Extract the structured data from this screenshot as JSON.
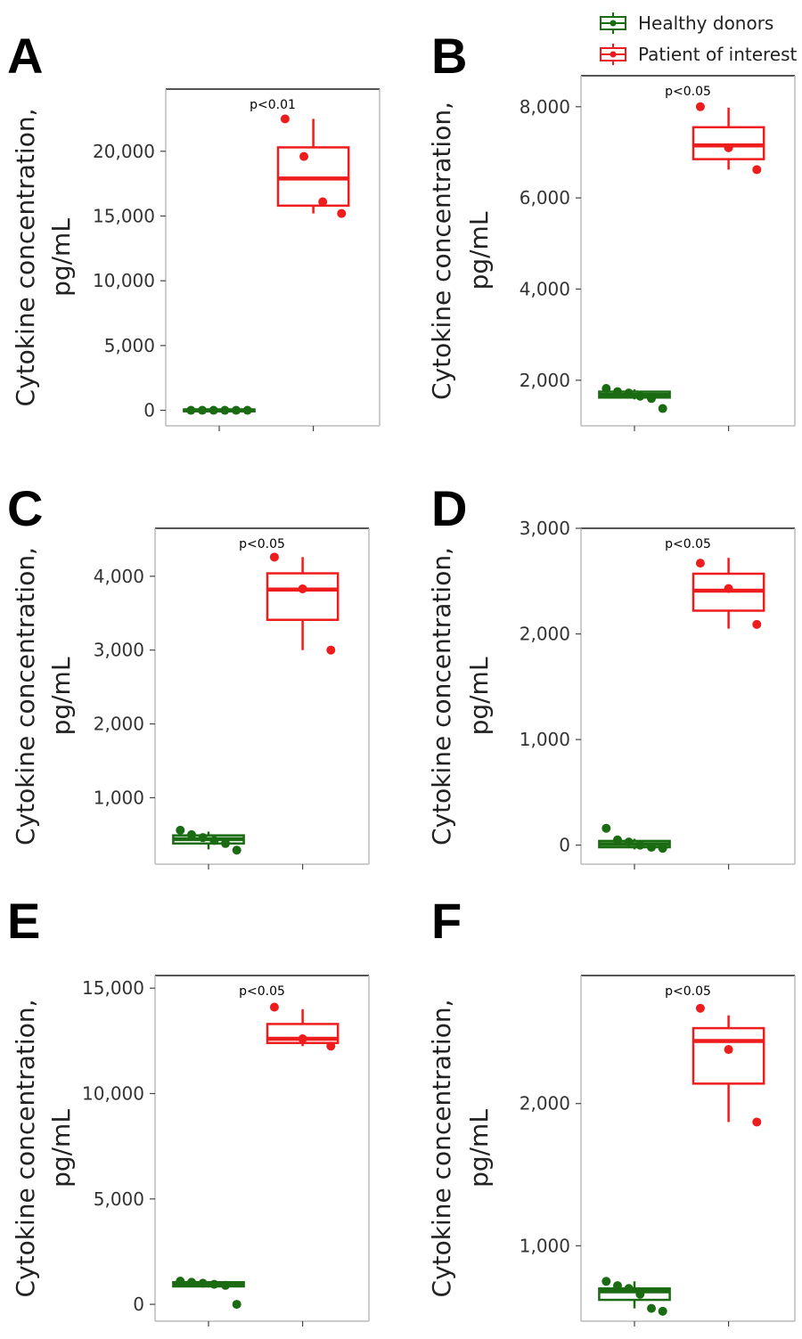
{
  "legend": {
    "position": "top-right",
    "items": [
      {
        "label": "Healthy donors",
        "color": "#1a6b12"
      },
      {
        "label": "Patient of interest",
        "color": "#ee1c1c"
      }
    ]
  },
  "chart_data": [
    {
      "panel": "A",
      "type": "box",
      "ylabel_line1": "Cytokine concentration,",
      "ylabel_line2": "pg/mL",
      "annotation": "p<0.01",
      "ylim": [
        -1200,
        24800
      ],
      "yticks": [
        0,
        5000,
        10000,
        15000,
        20000
      ],
      "ytick_labels": [
        "0",
        "5,000",
        "10,000",
        "15,000",
        "20,000"
      ],
      "groups": [
        {
          "name": "Healthy donors",
          "color": "#1a6b12",
          "box": {
            "q1": -60,
            "median": 0,
            "q3": 60,
            "whisker_low": -90,
            "whisker_high": 90
          },
          "points": [
            0,
            0,
            0,
            0,
            0,
            0
          ]
        },
        {
          "name": "Patient of interest",
          "color": "#ee1c1c",
          "box": {
            "q1": 15800,
            "median": 17900,
            "q3": 20300,
            "whisker_low": 15200,
            "whisker_high": 22500
          },
          "points": [
            22500,
            19600,
            16100,
            15200
          ]
        }
      ]
    },
    {
      "panel": "B",
      "type": "box",
      "ylabel_line1": "Cytokine concentration,",
      "ylabel_line2": "pg/mL",
      "annotation": "p<0.05",
      "ylim": [
        1000,
        8680
      ],
      "yticks": [
        2000,
        4000,
        6000,
        8000
      ],
      "ytick_labels": [
        "2,000",
        "4,000",
        "6,000",
        "8,000"
      ],
      "groups": [
        {
          "name": "Healthy donors",
          "color": "#1a6b12",
          "box": {
            "q1": 1620,
            "median": 1680,
            "q3": 1750,
            "whisker_low": 1580,
            "whisker_high": 1800
          },
          "points": [
            1820,
            1750,
            1720,
            1650,
            1600,
            1380
          ]
        },
        {
          "name": "Patient of interest",
          "color": "#ee1c1c",
          "box": {
            "q1": 6850,
            "median": 7150,
            "q3": 7550,
            "whisker_low": 6620,
            "whisker_high": 7980
          },
          "points": [
            8000,
            7100,
            6620
          ]
        }
      ]
    },
    {
      "panel": "C",
      "type": "box",
      "ylabel_line1": "Cytokine concentration,",
      "ylabel_line2": "pg/mL",
      "annotation": "p<0.05",
      "ylim": [
        100,
        4650
      ],
      "yticks": [
        1000,
        2000,
        3000,
        4000
      ],
      "ytick_labels": [
        "1,000",
        "2,000",
        "3,000",
        "4,000"
      ],
      "groups": [
        {
          "name": "Healthy donors",
          "color": "#1a6b12",
          "box": {
            "q1": 380,
            "median": 440,
            "q3": 490,
            "whisker_low": 300,
            "whisker_high": 540
          },
          "points": [
            560,
            500,
            460,
            420,
            380,
            290
          ]
        },
        {
          "name": "Patient of interest",
          "color": "#ee1c1c",
          "box": {
            "q1": 3410,
            "median": 3820,
            "q3": 4040,
            "whisker_low": 3000,
            "whisker_high": 4260
          },
          "points": [
            4260,
            3830,
            3000
          ]
        }
      ]
    },
    {
      "panel": "D",
      "type": "box",
      "ylabel_line1": "Cytokine concentration,",
      "ylabel_line2": "pg/mL",
      "annotation": "p<0.05",
      "ylim": [
        -180,
        3000
      ],
      "yticks": [
        0,
        1000,
        2000,
        3000
      ],
      "ytick_labels": [
        "0",
        "1,000",
        "2,000",
        "3,000"
      ],
      "groups": [
        {
          "name": "Healthy donors",
          "color": "#1a6b12",
          "box": {
            "q1": -20,
            "median": 10,
            "q3": 40,
            "whisker_low": -40,
            "whisker_high": 60
          },
          "points": [
            160,
            50,
            30,
            0,
            -20,
            -30
          ]
        },
        {
          "name": "Patient of interest",
          "color": "#ee1c1c",
          "box": {
            "q1": 2220,
            "median": 2410,
            "q3": 2570,
            "whisker_low": 2050,
            "whisker_high": 2720
          },
          "points": [
            2670,
            2430,
            2090
          ]
        }
      ]
    },
    {
      "panel": "E",
      "type": "box",
      "ylabel_line1": "Cytokine concentration,",
      "ylabel_line2": "pg/mL",
      "annotation": "p<0.05",
      "ylim": [
        -800,
        15600
      ],
      "yticks": [
        0,
        5000,
        10000,
        15000
      ],
      "ytick_labels": [
        "0",
        "5,000",
        "10,000",
        "15,000"
      ],
      "groups": [
        {
          "name": "Healthy donors",
          "color": "#1a6b12",
          "box": {
            "q1": 850,
            "median": 950,
            "q3": 1050,
            "whisker_low": 800,
            "whisker_high": 1100
          },
          "points": [
            1100,
            1050,
            1000,
            950,
            900,
            0
          ]
        },
        {
          "name": "Patient of interest",
          "color": "#ee1c1c",
          "box": {
            "q1": 12400,
            "median": 12600,
            "q3": 13300,
            "whisker_low": 12250,
            "whisker_high": 14000
          },
          "points": [
            14100,
            12600,
            12250
          ]
        }
      ]
    },
    {
      "panel": "F",
      "type": "box",
      "ylabel_line1": "Cytokine concentration,",
      "ylabel_line2": "pg/mL",
      "annotation": "p<0.05",
      "ylim": [
        470,
        2900
      ],
      "yticks": [
        1000,
        2000
      ],
      "ytick_labels": [
        "1,000",
        "2,000"
      ],
      "groups": [
        {
          "name": "Healthy donors",
          "color": "#1a6b12",
          "box": {
            "q1": 620,
            "median": 680,
            "q3": 700,
            "whisker_low": 560,
            "whisker_high": 750
          },
          "points": [
            750,
            720,
            700,
            660,
            560,
            540
          ]
        },
        {
          "name": "Patient of interest",
          "color": "#ee1c1c",
          "box": {
            "q1": 2140,
            "median": 2440,
            "q3": 2530,
            "whisker_low": 1870,
            "whisker_high": 2620
          },
          "points": [
            2670,
            2380,
            1870
          ]
        }
      ]
    }
  ]
}
